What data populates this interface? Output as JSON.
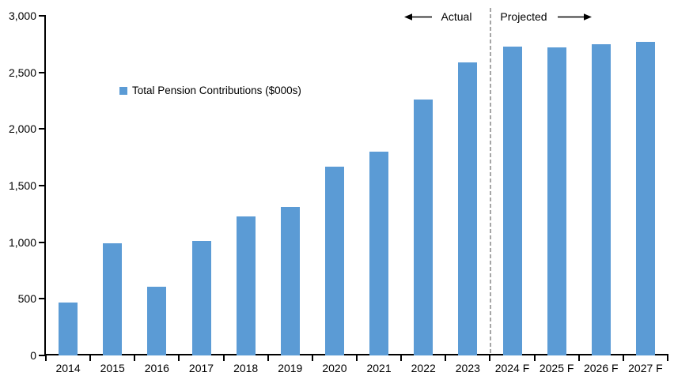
{
  "chart_data": {
    "type": "bar",
    "title": "",
    "categories": [
      "2014",
      "2015",
      "2016",
      "2017",
      "2018",
      "2019",
      "2020",
      "2021",
      "2022",
      "2023",
      "2024 F",
      "2025 F",
      "2026 F",
      "2027 F"
    ],
    "values": [
      470,
      990,
      610,
      1010,
      1230,
      1310,
      1670,
      1800,
      2260,
      2590,
      2730,
      2720,
      2750,
      2770
    ],
    "series_name": "Total Pension Contributions ($000s)",
    "xlabel": "",
    "ylabel": "",
    "ylim": [
      0,
      3000
    ],
    "ytick_interval": 500,
    "ytick_labels": [
      "0",
      "500",
      "1,000",
      "1,500",
      "2,000",
      "2,500",
      "3,000"
    ],
    "grid": false,
    "legend_position": "inside-upper-left",
    "actual_categories_last": "2023",
    "projected_categories_first": "2024 F"
  },
  "legend": {
    "swatch_icon": "blue-square",
    "label": "Total Pension Contributions ($000s)"
  },
  "annotations": {
    "actual_label": "Actual",
    "projected_label": "Projected",
    "left_arrow_icon": "left-arrow",
    "right_arrow_icon": "right-arrow",
    "divider_after_category": "2023"
  },
  "colors": {
    "bar": "#5B9BD5",
    "divider": "#A6A6A6",
    "axis": "#000000",
    "text": "#000000",
    "background": "#FFFFFF"
  }
}
